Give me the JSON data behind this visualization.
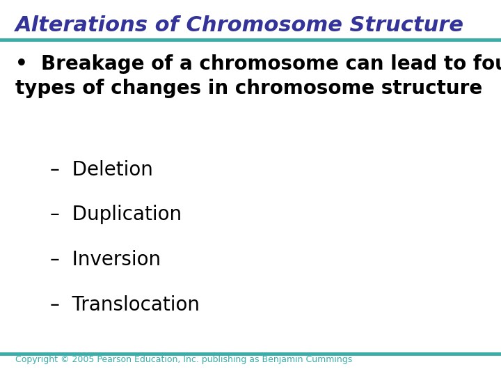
{
  "title": "Alterations of Chromosome Structure",
  "title_color": "#333399",
  "title_fontsize": 22,
  "title_bold": true,
  "title_italic": true,
  "separator_color": "#3aada8",
  "separator_linewidth": 3.5,
  "background_color": "#ffffff",
  "bullet_text": "Breakage of a chromosome can lead to four\ntypes of changes in chromosome structure",
  "bullet_color": "#000000",
  "bullet_fontsize": 20,
  "bullet_bold": true,
  "sub_items": [
    "Deletion",
    "Duplication",
    "Inversion",
    "Translocation"
  ],
  "sub_item_color": "#000000",
  "sub_item_fontsize": 20,
  "sub_item_bold": false,
  "dash_char": "–",
  "copyright_text": "Copyright © 2005 Pearson Education, Inc. publishing as Benjamin Cummings",
  "copyright_fontsize": 9,
  "copyright_color": "#3aada8"
}
